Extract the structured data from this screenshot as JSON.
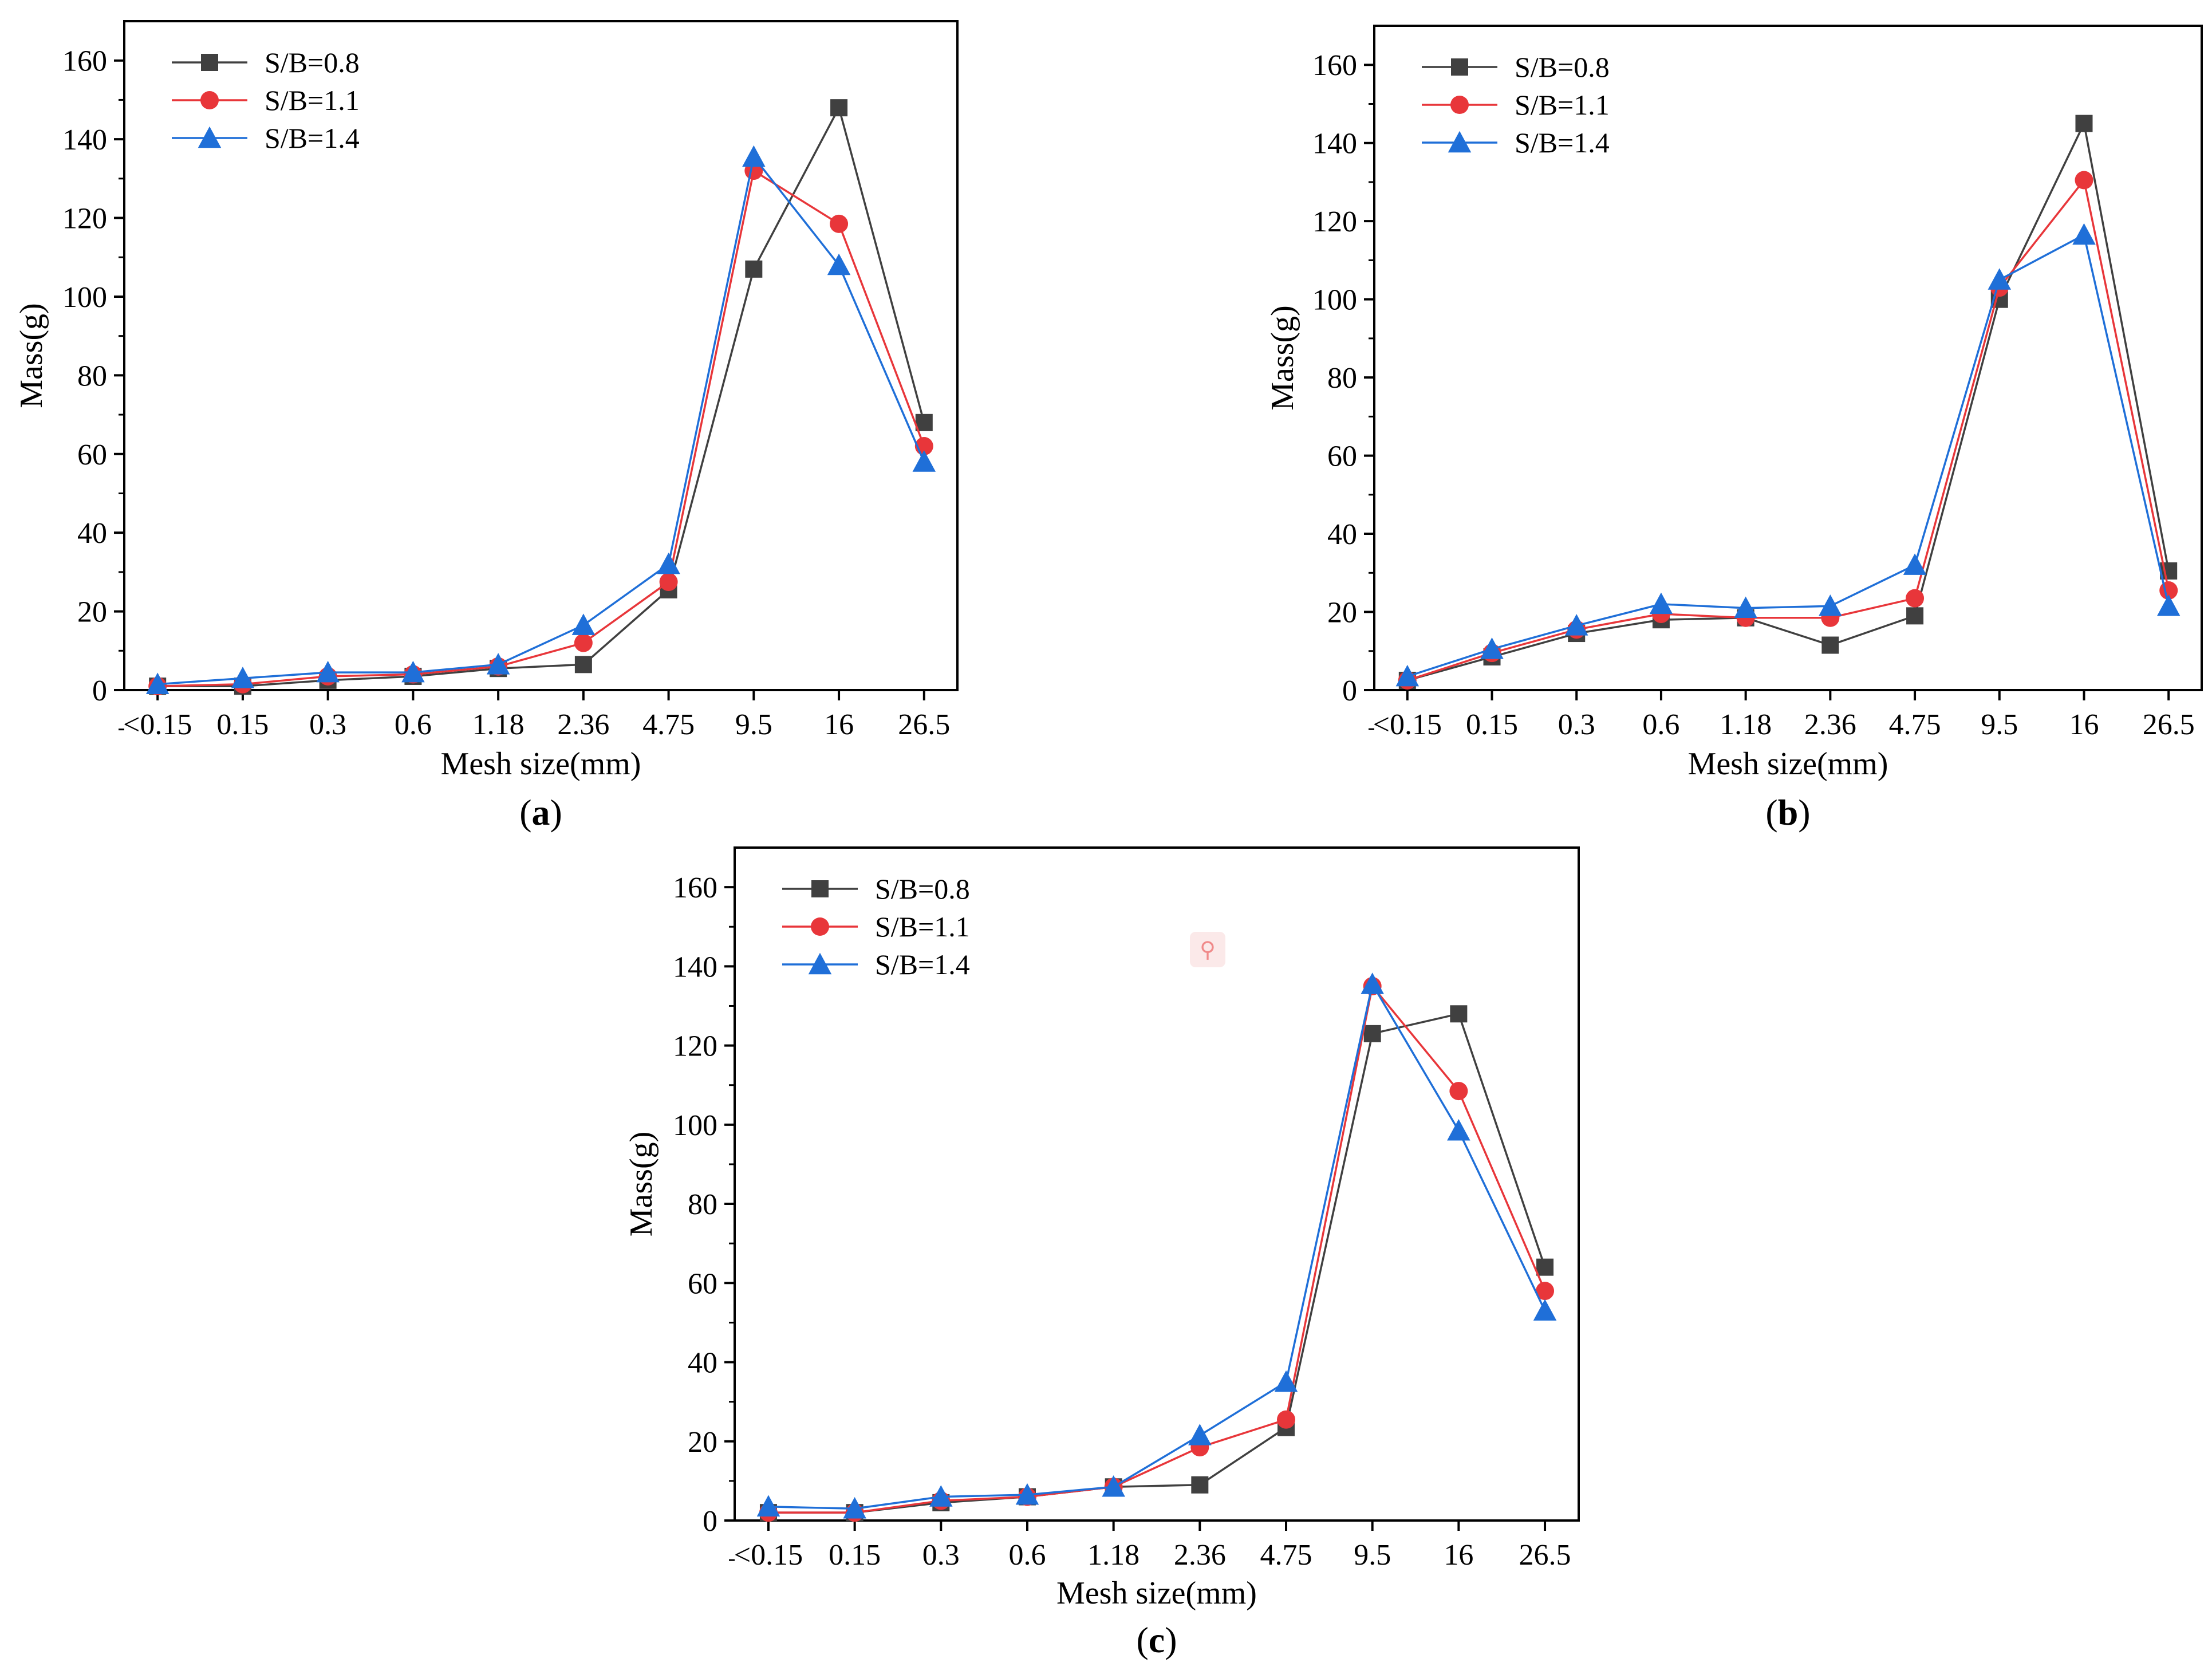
{
  "figure": {
    "zoom_icon": "magnifier-icon"
  },
  "chart_data": [
    {
      "type": "line",
      "panel_label": "a",
      "title": "",
      "xlabel": "Mesh size(mm)",
      "ylabel": "Mass(g)",
      "categories": [
        "<0.15",
        "0.15",
        "0.3",
        "0.6",
        "1.18",
        "2.36",
        "4.75",
        "9.5",
        "16",
        "26.5"
      ],
      "ylim": [
        0,
        170
      ],
      "yticks": [
        0,
        20,
        40,
        60,
        80,
        100,
        120,
        140,
        160
      ],
      "legend_position": "top-left",
      "series": [
        {
          "name": "S/B=0.8",
          "color": "#404040",
          "marker": "square",
          "values": [
            1.0,
            1.0,
            2.5,
            3.5,
            5.5,
            6.5,
            25.5,
            107,
            148,
            68
          ]
        },
        {
          "name": "S/B=1.1",
          "color": "#e8363a",
          "marker": "circle",
          "values": [
            1.0,
            1.5,
            3.5,
            4.0,
            6.0,
            12,
            27.5,
            132,
            118.5,
            62
          ]
        },
        {
          "name": "S/B=1.4",
          "color": "#1f6fd8",
          "marker": "triangle",
          "values": [
            1.5,
            3.0,
            4.5,
            4.5,
            6.5,
            16.5,
            32,
            135.5,
            108,
            58
          ]
        }
      ]
    },
    {
      "type": "line",
      "panel_label": "b",
      "title": "",
      "xlabel": "Mesh size(mm)",
      "ylabel": "Mass(g)",
      "categories": [
        "<0.15",
        "0.15",
        "0.3",
        "0.6",
        "1.18",
        "2.36",
        "4.75",
        "9.5",
        "16",
        "26.5"
      ],
      "ylim": [
        0,
        170
      ],
      "yticks": [
        0,
        20,
        40,
        60,
        80,
        100,
        120,
        140,
        160
      ],
      "legend_position": "top-left",
      "series": [
        {
          "name": "S/B=0.8",
          "color": "#404040",
          "marker": "square",
          "values": [
            2.5,
            8.5,
            14.5,
            18,
            18.5,
            11.5,
            19,
            100,
            145,
            30.5
          ]
        },
        {
          "name": "S/B=1.1",
          "color": "#e8363a",
          "marker": "circle",
          "values": [
            2.5,
            9.5,
            15.5,
            19.5,
            18.5,
            18.5,
            23.5,
            103,
            130.5,
            25.5
          ]
        },
        {
          "name": "S/B=1.4",
          "color": "#1f6fd8",
          "marker": "triangle",
          "values": [
            3.5,
            10.5,
            16.5,
            22,
            21,
            21.5,
            32,
            105,
            116.5,
            21.5
          ]
        }
      ]
    },
    {
      "type": "line",
      "panel_label": "c",
      "title": "",
      "xlabel": "Mesh size(mm)",
      "ylabel": "Mass(g)",
      "categories": [
        "<0.15",
        "0.15",
        "0.3",
        "0.6",
        "1.18",
        "2.36",
        "4.75",
        "9.5",
        "16",
        "26.5"
      ],
      "ylim": [
        0,
        170
      ],
      "yticks": [
        0,
        20,
        40,
        60,
        80,
        100,
        120,
        140,
        160
      ],
      "legend_position": "top-left",
      "series": [
        {
          "name": "S/B=0.8",
          "color": "#404040",
          "marker": "square",
          "values": [
            2.0,
            2.0,
            4.5,
            6.0,
            8.5,
            9.0,
            23.5,
            123,
            128,
            64
          ]
        },
        {
          "name": "S/B=1.1",
          "color": "#e8363a",
          "marker": "circle",
          "values": [
            2.0,
            2.0,
            5.0,
            6.0,
            8.5,
            18.5,
            25.5,
            135,
            108.5,
            58
          ]
        },
        {
          "name": "S/B=1.4",
          "color": "#1f6fd8",
          "marker": "triangle",
          "values": [
            3.5,
            3.0,
            6.0,
            6.5,
            8.5,
            21.5,
            35,
            135.5,
            98.5,
            53
          ]
        }
      ]
    }
  ]
}
